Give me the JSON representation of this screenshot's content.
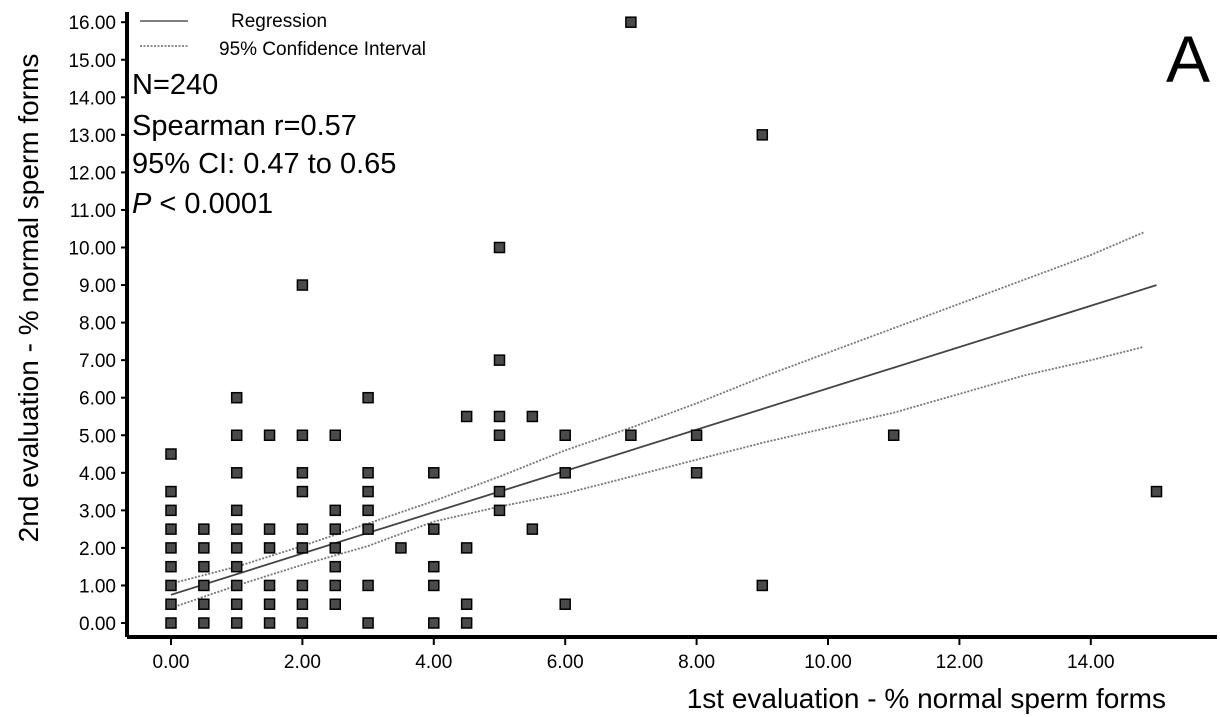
{
  "chart_data": {
    "type": "scatter",
    "xlabel": "1st  evaluation - % normal sperm forms",
    "ylabel": "2nd evaluation - % normal sperm forms",
    "xlim": [
      -0.7,
      15.9
    ],
    "ylim": [
      -0.3,
      16.5
    ],
    "x_ticks": [
      0,
      2,
      4,
      6,
      8,
      10,
      12,
      14
    ],
    "y_ticks": [
      0,
      1,
      2,
      3,
      4,
      5,
      6,
      7,
      8,
      9,
      10,
      11,
      12,
      13,
      14,
      15,
      16
    ],
    "x_tick_labels": [
      "0.00",
      "2.00",
      "4.00",
      "6.00",
      "8.00",
      "10.00",
      "12.00",
      "14.00"
    ],
    "y_tick_labels": [
      "0.00",
      "1.00",
      "2.00",
      "3.00",
      "4.00",
      "5.00",
      "6.00",
      "7.00",
      "8.00",
      "9.00",
      "10.00",
      "11.00",
      "12.00",
      "13.00",
      "14.00",
      "15.00",
      "16.00"
    ],
    "grid": false,
    "legend": {
      "placement": "top-left",
      "entries": [
        {
          "label": "Regression",
          "style": "solid"
        },
        {
          "label": "95% Confidence Interval",
          "style": "dotted"
        }
      ]
    },
    "stats": {
      "n": "N=240",
      "r": "Spearman r=0.57",
      "ci": "95% CI: 0.47 to 0.65",
      "p_symbol": "P",
      "p_value": " < 0.0001"
    },
    "panel_label": "A",
    "regression": {
      "x": [
        0,
        15
      ],
      "y": [
        0.75,
        9.0
      ]
    },
    "ci_upper": {
      "x": [
        0,
        1,
        2,
        3,
        4,
        5,
        6,
        7,
        8,
        9,
        10,
        11,
        12,
        13,
        14,
        14.8
      ],
      "y": [
        1.05,
        1.5,
        2.05,
        2.65,
        3.25,
        3.9,
        4.6,
        5.2,
        5.85,
        6.55,
        7.2,
        7.85,
        8.5,
        9.15,
        9.8,
        10.4
      ]
    },
    "ci_lower": {
      "x": [
        0,
        1,
        2,
        3,
        4,
        5,
        6,
        7,
        8,
        9,
        10,
        11,
        12,
        13,
        14,
        14.8
      ],
      "y": [
        0.4,
        1.0,
        1.55,
        2.05,
        2.7,
        3.1,
        3.45,
        3.9,
        4.35,
        4.8,
        5.2,
        5.6,
        6.1,
        6.6,
        7.0,
        7.35
      ]
    },
    "points": [
      [
        0,
        0
      ],
      [
        0,
        0.5
      ],
      [
        0,
        1
      ],
      [
        0,
        1.5
      ],
      [
        0,
        2
      ],
      [
        0,
        2.5
      ],
      [
        0,
        3
      ],
      [
        0,
        3.5
      ],
      [
        0,
        4.5
      ],
      [
        0.5,
        0
      ],
      [
        0.5,
        0.5
      ],
      [
        0.5,
        1
      ],
      [
        0.5,
        1.5
      ],
      [
        0.5,
        2
      ],
      [
        0.5,
        2.5
      ],
      [
        1,
        0
      ],
      [
        1,
        0.5
      ],
      [
        1,
        1
      ],
      [
        1,
        1.5
      ],
      [
        1,
        2
      ],
      [
        1,
        2.5
      ],
      [
        1,
        3
      ],
      [
        1,
        4
      ],
      [
        1,
        5
      ],
      [
        1,
        6
      ],
      [
        1.5,
        0
      ],
      [
        1.5,
        0.5
      ],
      [
        1.5,
        1
      ],
      [
        1.5,
        2
      ],
      [
        1.5,
        2.5
      ],
      [
        1.5,
        5
      ],
      [
        2,
        0
      ],
      [
        2,
        0.5
      ],
      [
        2,
        1
      ],
      [
        2,
        2
      ],
      [
        2,
        2.5
      ],
      [
        2,
        3.5
      ],
      [
        2,
        4
      ],
      [
        2,
        5
      ],
      [
        2,
        9
      ],
      [
        2.5,
        0.5
      ],
      [
        2.5,
        1
      ],
      [
        2.5,
        1.5
      ],
      [
        2.5,
        2
      ],
      [
        2.5,
        2.5
      ],
      [
        2.5,
        3
      ],
      [
        2.5,
        5
      ],
      [
        3,
        0
      ],
      [
        3,
        1
      ],
      [
        3,
        2.5
      ],
      [
        3,
        3
      ],
      [
        3,
        3.5
      ],
      [
        3,
        4
      ],
      [
        3,
        6
      ],
      [
        3.5,
        2
      ],
      [
        4,
        0
      ],
      [
        4,
        1
      ],
      [
        4,
        1.5
      ],
      [
        4,
        2.5
      ],
      [
        4,
        4
      ],
      [
        4.5,
        0
      ],
      [
        4.5,
        0.5
      ],
      [
        4.5,
        2
      ],
      [
        4.5,
        5.5
      ],
      [
        5,
        3
      ],
      [
        5,
        3.5
      ],
      [
        5,
        5
      ],
      [
        5,
        5.5
      ],
      [
        5,
        7
      ],
      [
        5,
        10
      ],
      [
        5.5,
        2.5
      ],
      [
        5.5,
        5.5
      ],
      [
        6,
        0.5
      ],
      [
        6,
        4
      ],
      [
        6,
        5
      ],
      [
        7,
        5
      ],
      [
        7,
        16
      ],
      [
        8,
        4
      ],
      [
        8,
        5
      ],
      [
        9,
        1
      ],
      [
        9,
        13
      ],
      [
        11,
        5
      ],
      [
        15,
        3.5
      ]
    ]
  }
}
